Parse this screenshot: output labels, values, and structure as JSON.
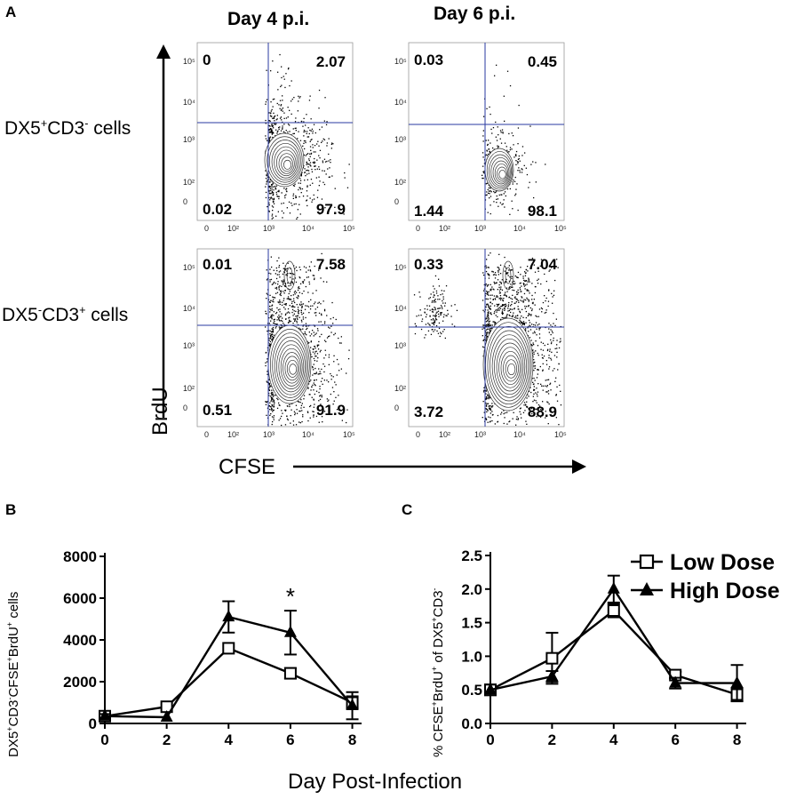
{
  "panelA": {
    "letter": "A",
    "columns": [
      "Day 4 p.i.",
      "Day 6 p.i."
    ],
    "rows": [
      {
        "label_pre": "DX5",
        "label_sup1": "+",
        "label_mid": "CD3",
        "label_sup2": "-",
        "label_post": " cells"
      },
      {
        "label_pre": "DX5",
        "label_sup1": "-",
        "label_mid": "CD3",
        "label_sup2": "+",
        "label_post": " cells"
      }
    ],
    "yAxis": "BrdU",
    "xAxis": "CFSE",
    "yTicks": [
      "10⁵",
      "10⁴",
      "10³",
      "10²",
      "0"
    ],
    "xTicks": [
      "0",
      "10²",
      "10³",
      "10⁴",
      "10⁵"
    ],
    "plots": [
      {
        "ul": "0",
        "ur": "2.07",
        "ll": "0.02",
        "lr": "97.9"
      },
      {
        "ul": "0.03",
        "ur": "0.45",
        "ll": "1.44",
        "lr": "98.1"
      },
      {
        "ul": "0.01",
        "ur": "7.58",
        "ll": "0.51",
        "lr": "91.9"
      },
      {
        "ul": "0.33",
        "ur": "7.04",
        "ll": "3.72",
        "lr": "88.9"
      }
    ],
    "gateColor": "#2a3aa0"
  },
  "panelB": {
    "letter": "B"
  },
  "panelC": {
    "letter": "C"
  },
  "sharedXLabel": "Day Post-Infection",
  "chart_data": [
    {
      "type": "line",
      "title": "",
      "xlabel": "",
      "ylabel_parts": [
        "DX5",
        "+",
        "CD3",
        "-",
        "CFSE",
        "+",
        "BrdU",
        "+",
        " cells"
      ],
      "x": [
        0,
        2,
        4,
        6,
        8
      ],
      "xlim": [
        0,
        8.3
      ],
      "ylim": [
        0,
        8000
      ],
      "yticks": [
        0,
        2000,
        4000,
        6000,
        8000
      ],
      "annotation": {
        "text": "*",
        "x": 6,
        "y": 6300
      },
      "series": [
        {
          "name": "Low Dose",
          "marker": "square",
          "values": [
            350,
            800,
            3600,
            2400,
            1000
          ],
          "err": [
            0,
            0,
            0,
            250,
            300
          ]
        },
        {
          "name": "High Dose",
          "marker": "triangle",
          "values": [
            350,
            300,
            5100,
            4350,
            850
          ],
          "err": [
            100,
            0,
            750,
            1050,
            650
          ]
        }
      ]
    },
    {
      "type": "line",
      "title": "",
      "xlabel": "",
      "ylabel_parts": [
        "% CFSE",
        "+",
        "BrdU",
        "+",
        " of DX5",
        "+",
        "CD3",
        "-",
        ""
      ],
      "x": [
        0,
        2,
        4,
        6,
        8
      ],
      "xlim": [
        0,
        8.3
      ],
      "ylim": [
        0,
        2.5
      ],
      "yticks": [
        "0.0",
        "0.5",
        "1.0",
        "1.5",
        "2.0",
        "2.5"
      ],
      "legend": {
        "placement": "top-right",
        "entries": [
          "Low Dose",
          "High Dose"
        ]
      },
      "series": [
        {
          "name": "Low Dose",
          "marker": "square",
          "values": [
            0.5,
            0.97,
            1.68,
            0.72,
            0.43
          ],
          "err": [
            0.05,
            0.38,
            0.1,
            0.05,
            0.1
          ]
        },
        {
          "name": "High Dose",
          "marker": "triangle",
          "values": [
            0.5,
            0.7,
            2.0,
            0.6,
            0.6
          ],
          "err": [
            0.08,
            0.08,
            0.2,
            0.08,
            0.27
          ]
        }
      ]
    }
  ]
}
